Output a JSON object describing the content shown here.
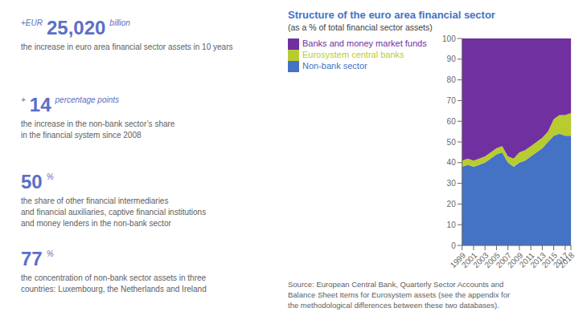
{
  "chart_data": {
    "type": "area",
    "stacked": true,
    "title": "Structure of the euro area financial sector",
    "subtitle": "(as a % of total financial sector assets)",
    "x": [
      1999,
      2000,
      2001,
      2002,
      2003,
      2004,
      2005,
      2006,
      2007,
      2008,
      2009,
      2010,
      2011,
      2012,
      2013,
      2014,
      2015,
      2016,
      2017,
      2018
    ],
    "series": [
      {
        "name": "Non-bank sector",
        "color": "#4472c4",
        "values": [
          38,
          39,
          38,
          39,
          40,
          42,
          44,
          45,
          40,
          38,
          40,
          41,
          43,
          45,
          47,
          50,
          53,
          54,
          53,
          53
        ]
      },
      {
        "name": "Eurosystem central banks",
        "color": "#b8cc30",
        "values": [
          3,
          3,
          3,
          3,
          3,
          3,
          3,
          3,
          3,
          4,
          5,
          5,
          5,
          5,
          5,
          5,
          8,
          9,
          10,
          11
        ]
      },
      {
        "name": "Banks and money market funds",
        "color": "#7030a0",
        "values": [
          59,
          58,
          59,
          58,
          57,
          55,
          53,
          52,
          57,
          58,
          55,
          54,
          52,
          50,
          48,
          45,
          39,
          37,
          37,
          36
        ]
      }
    ],
    "xlim": [
      1999,
      2018
    ],
    "xticks": [
      1999,
      2001,
      2003,
      2005,
      2007,
      2009,
      2011,
      2013,
      2015,
      2017,
      2018
    ],
    "ylim": [
      0,
      100
    ],
    "yticks": [
      0,
      10,
      20,
      30,
      40,
      50,
      60,
      70,
      80,
      90,
      100
    ],
    "grid": true,
    "legend": "upper left",
    "annotations": [
      [
        "+EUR",
        "25,020",
        "billion",
        "the increase in euro area financial sector assets in 10 years"
      ],
      [
        "+",
        "14",
        "percentage points",
        "the increase in the non-bank sector’s share\nin the financial system since 2008"
      ],
      [
        "50",
        "%",
        "the share of other financial intermediaries\nand financial auxiliaries, captive financial institutions\nand money lenders in the non-bank sector"
      ],
      [
        "77",
        "%",
        "the concentration of non-bank sector assets in three\ncountries: Luxembourg, the Netherlands and Ireland"
      ],
      "Source: European Central Bank, Quarterly Sector Accounts and\nBalance Sheet Items for Eurosystem assets (see the appendix for\nthe methodological differences between these two databases)."
    ]
  }
}
